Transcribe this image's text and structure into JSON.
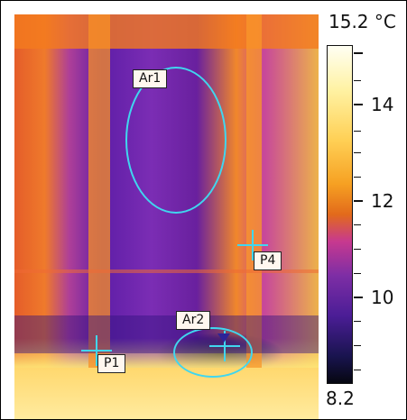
{
  "thermal_view": {
    "regions": {
      "ar1_label": "Ar1",
      "ar2_label": "Ar2"
    },
    "points": {
      "p1_label": "P1",
      "p4_label": "P4"
    }
  },
  "scale": {
    "max_label": "15.2 °C",
    "min_label": "8.2",
    "ticks": {
      "t14": "14",
      "t12": "12",
      "t10": "10"
    }
  }
}
